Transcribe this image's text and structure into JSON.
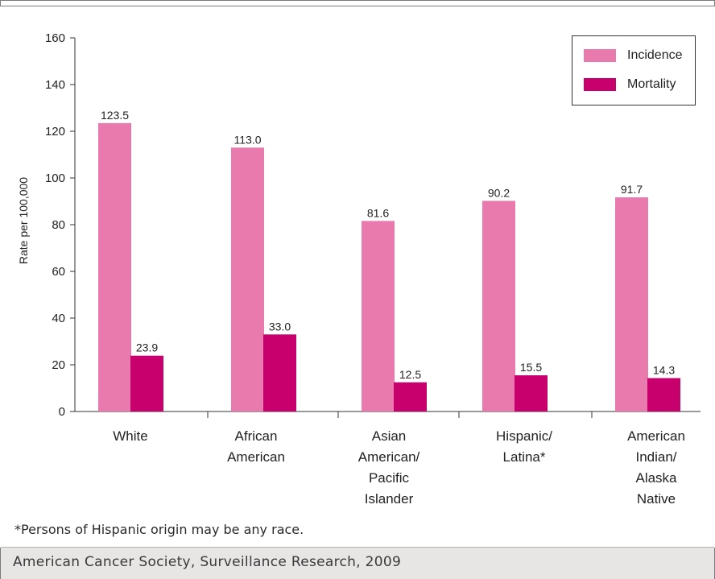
{
  "chart_data": {
    "type": "bar",
    "title": "",
    "xlabel": "",
    "ylabel": "Rate per 100,000",
    "ylim": [
      0,
      160
    ],
    "yticks": [
      0,
      20,
      40,
      60,
      80,
      100,
      120,
      140,
      160
    ],
    "categories": [
      "White",
      "African American",
      "Asian American/ Pacific Islander",
      "Hispanic/ Latina*",
      "American Indian/ Alaska Native"
    ],
    "category_lines": [
      [
        "White"
      ],
      [
        "African",
        "American"
      ],
      [
        "Asian",
        "American/",
        "Pacific",
        "Islander"
      ],
      [
        "Hispanic/",
        "Latina*"
      ],
      [
        "American",
        "Indian/",
        "Alaska",
        "Native"
      ]
    ],
    "series": [
      {
        "name": "Incidence",
        "color": "#e87aae",
        "values": [
          123.5,
          113.0,
          81.6,
          90.2,
          91.7
        ],
        "labels": [
          "123.5",
          "113.0",
          "81.6",
          "90.2",
          "91.7"
        ]
      },
      {
        "name": "Mortality",
        "color": "#c8006e",
        "values": [
          23.9,
          33.0,
          12.5,
          15.5,
          14.3
        ],
        "labels": [
          "23.9",
          "33.0",
          "12.5",
          "15.5",
          "14.3"
        ]
      }
    ],
    "legend_position": "top-right",
    "grid": false
  },
  "footnote": "*Persons of Hispanic origin may be any race.",
  "source": "American Cancer Society, Surveillance Research, 2009"
}
